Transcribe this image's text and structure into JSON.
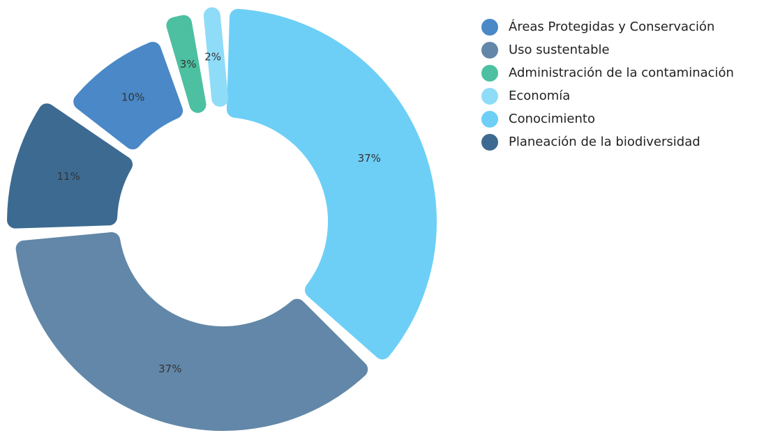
{
  "chart_data": {
    "type": "donut",
    "categories": [
      "Áreas Protegidas y Conservación",
      "Uso sustentable",
      "Administración de la contaminación",
      "Economía",
      "Conocimiento",
      "Planeación de la biodiversidad"
    ],
    "values": [
      10,
      37,
      3,
      2,
      37,
      11
    ],
    "value_labels": [
      "10%",
      "37%",
      "3%",
      "2%",
      "37%",
      "11%"
    ],
    "colors": [
      "#4a88c7",
      "#6287a8",
      "#4cc0a0",
      "#8fdcf8",
      "#6dcff6",
      "#3d6a91"
    ],
    "legend": "top-right"
  }
}
